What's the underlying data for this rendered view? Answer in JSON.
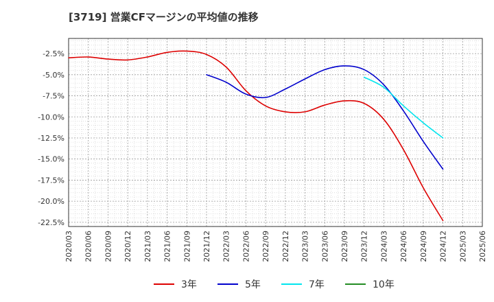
{
  "title": "[3719]  営業CFマージンの平均値の推移",
  "chart_data": {
    "type": "line",
    "title": "[3719]  営業CFマージンの平均値の推移",
    "xlabel": "",
    "ylabel": "",
    "x_ticks": [
      "2020/03",
      "2020/06",
      "2020/09",
      "2020/12",
      "2021/03",
      "2021/06",
      "2021/09",
      "2021/12",
      "2022/03",
      "2022/06",
      "2022/09",
      "2022/12",
      "2023/03",
      "2023/06",
      "2023/09",
      "2023/12",
      "2024/03",
      "2024/06",
      "2024/09",
      "2024/12",
      "2025/03",
      "2025/06"
    ],
    "y_ticks": [
      -2.5,
      -5.0,
      -7.5,
      -10.0,
      -12.5,
      -15.0,
      -17.5,
      -20.0,
      -22.5
    ],
    "y_tick_labels": [
      "-2.5%",
      "-5.0%",
      "-7.5%",
      "-10.0%",
      "-12.5%",
      "-15.0%",
      "-17.5%",
      "-20.0%",
      "-22.5%"
    ],
    "ylim": [
      -23.0,
      -0.7
    ],
    "grid": true,
    "legend_position": "bottom",
    "series": [
      {
        "name": "3年",
        "color": "#dd0000",
        "points": [
          {
            "x": "2020/03",
            "y": -3.0
          },
          {
            "x": "2020/06",
            "y": -2.9
          },
          {
            "x": "2020/09",
            "y": -3.15
          },
          {
            "x": "2020/12",
            "y": -3.25
          },
          {
            "x": "2021/03",
            "y": -2.9
          },
          {
            "x": "2021/06",
            "y": -2.35
          },
          {
            "x": "2021/09",
            "y": -2.2
          },
          {
            "x": "2021/12",
            "y": -2.6
          },
          {
            "x": "2022/03",
            "y": -4.1
          },
          {
            "x": "2022/06",
            "y": -6.9
          },
          {
            "x": "2022/09",
            "y": -8.7
          },
          {
            "x": "2022/12",
            "y": -9.4
          },
          {
            "x": "2023/03",
            "y": -9.4
          },
          {
            "x": "2023/06",
            "y": -8.6
          },
          {
            "x": "2023/09",
            "y": -8.1
          },
          {
            "x": "2023/12",
            "y": -8.4
          },
          {
            "x": "2024/03",
            "y": -10.3
          },
          {
            "x": "2024/06",
            "y": -13.9
          },
          {
            "x": "2024/09",
            "y": -18.4
          },
          {
            "x": "2024/12",
            "y": -22.3
          }
        ]
      },
      {
        "name": "5年",
        "color": "#0000cc",
        "points": [
          {
            "x": "2021/12",
            "y": -5.0
          },
          {
            "x": "2022/03",
            "y": -5.9
          },
          {
            "x": "2022/06",
            "y": -7.3
          },
          {
            "x": "2022/09",
            "y": -7.7
          },
          {
            "x": "2022/12",
            "y": -6.7
          },
          {
            "x": "2023/03",
            "y": -5.5
          },
          {
            "x": "2023/06",
            "y": -4.4
          },
          {
            "x": "2023/09",
            "y": -3.95
          },
          {
            "x": "2023/12",
            "y": -4.4
          },
          {
            "x": "2024/03",
            "y": -6.2
          },
          {
            "x": "2024/06",
            "y": -9.3
          },
          {
            "x": "2024/09",
            "y": -12.9
          },
          {
            "x": "2024/12",
            "y": -16.2
          }
        ]
      },
      {
        "name": "7年",
        "color": "#00e5ee",
        "points": [
          {
            "x": "2023/12",
            "y": -5.3
          },
          {
            "x": "2024/03",
            "y": -6.5
          },
          {
            "x": "2024/06",
            "y": -8.7
          },
          {
            "x": "2024/09",
            "y": -10.7
          },
          {
            "x": "2024/12",
            "y": -12.5
          }
        ]
      },
      {
        "name": "10年",
        "color": "#228b22",
        "points": []
      }
    ]
  }
}
